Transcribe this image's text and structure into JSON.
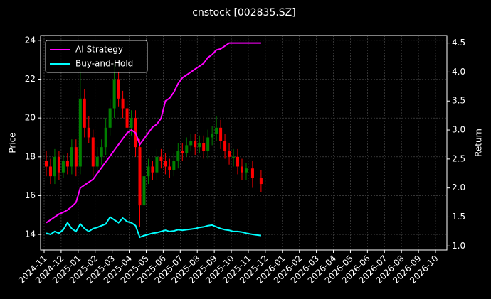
{
  "chart_data": {
    "type": "candlestick-returns",
    "title": "cnstock [002835.SZ]",
    "y_label": "Price",
    "y2_label": "Return",
    "x": [
      "2024-11",
      "2024-11",
      "2024-11",
      "2024-11",
      "2024-12",
      "2024-12",
      "2024-12",
      "2024-12",
      "2025-01",
      "2025-01",
      "2025-01",
      "2025-01",
      "2025-02",
      "2025-02",
      "2025-02",
      "2025-02",
      "2025-03",
      "2025-03",
      "2025-03",
      "2025-03",
      "2025-04",
      "2025-04",
      "2025-04",
      "2025-04",
      "2025-05",
      "2025-05",
      "2025-05",
      "2025-05",
      "2025-06",
      "2025-06",
      "2025-06",
      "2025-06",
      "2025-07",
      "2025-07",
      "2025-07",
      "2025-07",
      "2025-08",
      "2025-08",
      "2025-08",
      "2025-08",
      "2025-09",
      "2025-09",
      "2025-09",
      "2025-09",
      "2025-10",
      "2025-10",
      "2025-10",
      "2025-10",
      "2025-11",
      "2025-11"
    ],
    "candles": {
      "up_color": "#008000",
      "down_color": "#ff0000",
      "open": [
        17.8,
        17.5,
        17.0,
        18.0,
        17.2,
        17.8,
        17.5,
        18.5,
        17.5,
        21.0,
        19.5,
        19.0,
        17.5,
        18.0,
        18.5,
        19.5,
        20.5,
        22.0,
        21.0,
        20.5,
        19.5,
        20.0,
        18.5,
        15.5,
        17.0,
        17.5,
        17.2,
        18.0,
        17.8,
        17.5,
        17.3,
        17.8,
        18.3,
        18.2,
        18.6,
        18.8,
        18.5,
        18.7,
        18.3,
        19.0,
        19.2,
        19.5,
        18.8,
        18.3,
        18.0,
        18.0,
        17.5,
        17.2,
        17.4,
        16.9
      ],
      "high": [
        18.3,
        17.9,
        18.4,
        18.3,
        18.1,
        18.2,
        18.9,
        18.9,
        22.6,
        21.5,
        20.1,
        19.4,
        18.5,
        18.9,
        20.0,
        21.0,
        22.8,
        22.4,
        21.4,
        20.9,
        20.4,
        20.4,
        18.9,
        17.4,
        17.9,
        17.8,
        18.4,
        18.4,
        18.2,
        17.9,
        18.2,
        18.7,
        18.7,
        19.0,
        19.2,
        19.2,
        19.1,
        19.1,
        19.4,
        19.6,
        20.1,
        19.9,
        19.2,
        18.7,
        18.4,
        18.4,
        17.9,
        17.7,
        17.8,
        17.3
      ],
      "low": [
        17.0,
        16.6,
        16.6,
        16.8,
        16.9,
        17.1,
        17.1,
        17.0,
        17.1,
        19.0,
        18.7,
        17.0,
        17.1,
        17.6,
        18.1,
        19.1,
        20.0,
        20.6,
        20.0,
        19.0,
        19.1,
        18.0,
        14.4,
        15.0,
        16.6,
        16.8,
        16.8,
        17.4,
        17.1,
        16.9,
        17.0,
        17.4,
        17.8,
        18.0,
        18.3,
        18.1,
        18.2,
        17.9,
        17.9,
        18.6,
        18.8,
        18.4,
        17.9,
        17.6,
        17.5,
        17.1,
        16.8,
        16.8,
        16.4,
        16.2
      ],
      "close": [
        17.5,
        17.0,
        18.0,
        17.2,
        17.8,
        17.5,
        18.5,
        17.5,
        21.0,
        19.5,
        19.0,
        17.5,
        18.0,
        18.5,
        19.5,
        20.5,
        22.0,
        21.0,
        20.5,
        19.5,
        20.0,
        18.5,
        15.5,
        17.0,
        17.5,
        17.2,
        18.0,
        17.8,
        17.5,
        17.3,
        17.8,
        18.3,
        18.2,
        18.6,
        18.8,
        18.5,
        18.7,
        18.3,
        19.0,
        19.2,
        19.5,
        18.8,
        18.3,
        18.0,
        18.0,
        17.5,
        17.2,
        17.4,
        16.9,
        16.6
      ]
    },
    "series": [
      {
        "name": "AI Strategy",
        "color": "#ff00ff",
        "axis": "y2",
        "values": [
          1.4,
          1.45,
          1.5,
          1.55,
          1.58,
          1.62,
          1.68,
          1.75,
          2.0,
          2.05,
          2.1,
          2.15,
          2.25,
          2.35,
          2.45,
          2.55,
          2.65,
          2.75,
          2.85,
          2.95,
          3.0,
          2.95,
          2.75,
          2.85,
          2.95,
          3.05,
          3.1,
          3.2,
          3.5,
          3.55,
          3.65,
          3.8,
          3.9,
          3.95,
          4.0,
          4.05,
          4.1,
          4.15,
          4.25,
          4.3,
          4.38,
          4.4,
          4.45,
          4.5,
          4.5,
          4.5,
          4.5,
          4.5,
          4.5,
          4.5
        ]
      },
      {
        "name": "Buy-and-Hold",
        "color": "#00ffff",
        "axis": "y2",
        "values": [
          1.22,
          1.2,
          1.25,
          1.22,
          1.28,
          1.4,
          1.3,
          1.25,
          1.38,
          1.3,
          1.25,
          1.3,
          1.32,
          1.35,
          1.38,
          1.5,
          1.45,
          1.4,
          1.48,
          1.42,
          1.4,
          1.35,
          1.15,
          1.18,
          1.2,
          1.22,
          1.23,
          1.25,
          1.27,
          1.25,
          1.26,
          1.28,
          1.27,
          1.28,
          1.29,
          1.3,
          1.32,
          1.33,
          1.35,
          1.36,
          1.33,
          1.3,
          1.28,
          1.27,
          1.25,
          1.25,
          1.24,
          1.22,
          1.2,
          1.18
        ]
      }
    ],
    "xlim": [
      "2024-11",
      "2026-10"
    ],
    "xticks": [
      "2024-11",
      "2024-12",
      "2025-01",
      "2025-02",
      "2025-03",
      "2025-04",
      "2025-05",
      "2025-06",
      "2025-07",
      "2025-08",
      "2025-09",
      "2025-10",
      "2025-11",
      "2025-12",
      "2026-01",
      "2026-02",
      "2026-03",
      "2026-04",
      "2026-05",
      "2026-06",
      "2026-07",
      "2026-08",
      "2026-09",
      "2026-10"
    ],
    "ylim": [
      13.2,
      24.25
    ],
    "yticks": [
      14,
      16,
      18,
      20,
      22,
      24
    ],
    "y2lim": [
      0.93,
      4.63
    ],
    "y2ticks": [
      {
        "value": 1,
        "label": "1.0"
      },
      1.5,
      {
        "value": 2,
        "label": "2.0"
      },
      2.5,
      {
        "value": 3,
        "label": "3.0"
      },
      3.5,
      {
        "value": 4,
        "label": "4.0"
      },
      4.5
    ],
    "grid": true,
    "legend": "upper-left"
  }
}
